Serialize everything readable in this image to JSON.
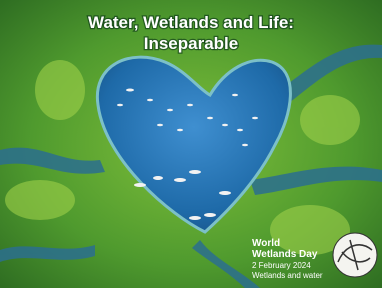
{
  "poster": {
    "title_lines": [
      "Water, Wetlands and Life:",
      "Inseparable"
    ],
    "logo_lines": [
      "World",
      "Wetlands Day"
    ],
    "date": "2 February 2024",
    "tagline": "Wetlands and water"
  }
}
